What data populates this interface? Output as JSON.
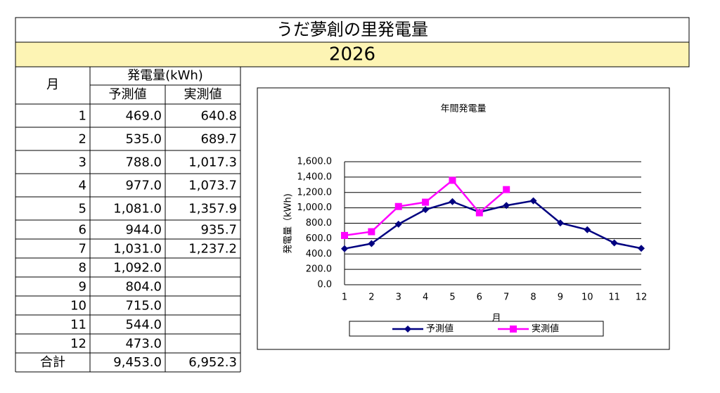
{
  "title": "うだ夢創の里発電量",
  "year": "2026",
  "table": {
    "header": {
      "month": "月",
      "group": "発電量(kWh)",
      "columns": [
        "予測値",
        "実測値"
      ]
    },
    "rows": [
      [
        "1",
        "469.0",
        "640.8"
      ],
      [
        "2",
        "535.0",
        "689.7"
      ],
      [
        "3",
        "788.0",
        "1,017.3"
      ],
      [
        "4",
        "977.0",
        "1,073.7"
      ],
      [
        "5",
        "1,081.0",
        "1,357.9"
      ],
      [
        "6",
        "944.0",
        "935.7"
      ],
      [
        "7",
        "1,031.0",
        "1,237.2"
      ],
      [
        "8",
        "1,092.0"
      ],
      [
        "9",
        "804.0"
      ],
      [
        "10",
        "715.0"
      ],
      [
        "11",
        "544.0"
      ],
      [
        "12",
        "473.0"
      ]
    ],
    "total": [
      "合計",
      "9,453.0",
      "6,952.3"
    ]
  },
  "chart_data": {
    "type": "line",
    "title": "年間発電量",
    "x_label": "月",
    "y_label": "発電量（kWh)",
    "categories": [
      "1",
      "2",
      "3",
      "4",
      "5",
      "6",
      "7",
      "8",
      "9",
      "10",
      "11",
      "12"
    ],
    "series": [
      {
        "name": "予測値",
        "color": "#000080",
        "marker": "diamond",
        "values": [
          469,
          535,
          788,
          977,
          1081,
          944,
          1031,
          1092,
          804,
          715,
          544,
          473
        ]
      },
      {
        "name": "実測値",
        "color": "#ff00ff",
        "marker": "square",
        "values": [
          640.8,
          689.7,
          1017.3,
          1073.7,
          1357.9,
          935.7,
          1237.2,
          null,
          null,
          null,
          null,
          null
        ]
      }
    ],
    "ylim": [
      0,
      1600
    ],
    "yticks": [
      {
        "value": 0,
        "label": "0.0"
      },
      {
        "value": 200,
        "label": "200.0"
      },
      {
        "value": 400,
        "label": "400.0"
      },
      {
        "value": 600,
        "label": "600.0"
      },
      {
        "value": 800,
        "label": "800.0"
      },
      {
        "value": 1000,
        "label": "1,000.0"
      },
      {
        "value": 1200,
        "label": "1,200.0"
      },
      {
        "value": 1400,
        "label": "1,400.0"
      },
      {
        "value": 1600,
        "label": "1,600.0"
      }
    ],
    "grid": true,
    "legend": "bottom"
  }
}
